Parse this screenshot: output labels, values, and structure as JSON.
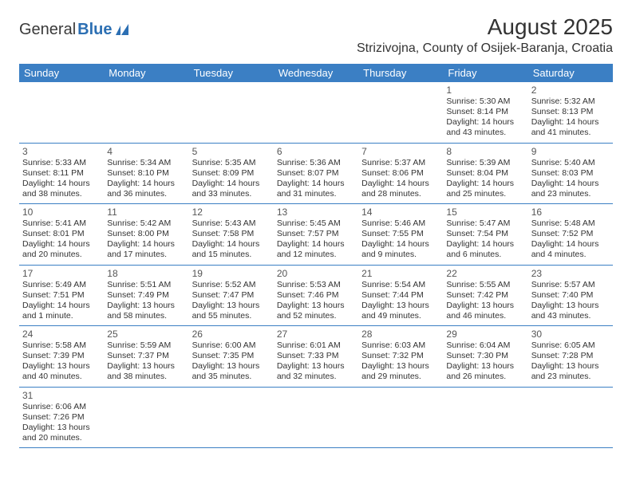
{
  "logo": {
    "general": "General",
    "blue": "Blue"
  },
  "header": {
    "month_title": "August 2025",
    "location": "Strizivojna, County of Osijek-Baranja, Croatia"
  },
  "calendar": {
    "colors": {
      "header_bg": "#3b7fc4",
      "header_fg": "#ffffff",
      "border": "#3b7fc4",
      "text": "#333333",
      "daynum": "#555555",
      "page_bg": "#ffffff"
    },
    "day_headers": [
      "Sunday",
      "Monday",
      "Tuesday",
      "Wednesday",
      "Thursday",
      "Friday",
      "Saturday"
    ],
    "weeks": [
      [
        null,
        null,
        null,
        null,
        null,
        {
          "n": "1",
          "sr": "Sunrise: 5:30 AM",
          "ss": "Sunset: 8:14 PM",
          "dl": "Daylight: 14 hours and 43 minutes."
        },
        {
          "n": "2",
          "sr": "Sunrise: 5:32 AM",
          "ss": "Sunset: 8:13 PM",
          "dl": "Daylight: 14 hours and 41 minutes."
        }
      ],
      [
        {
          "n": "3",
          "sr": "Sunrise: 5:33 AM",
          "ss": "Sunset: 8:11 PM",
          "dl": "Daylight: 14 hours and 38 minutes."
        },
        {
          "n": "4",
          "sr": "Sunrise: 5:34 AM",
          "ss": "Sunset: 8:10 PM",
          "dl": "Daylight: 14 hours and 36 minutes."
        },
        {
          "n": "5",
          "sr": "Sunrise: 5:35 AM",
          "ss": "Sunset: 8:09 PM",
          "dl": "Daylight: 14 hours and 33 minutes."
        },
        {
          "n": "6",
          "sr": "Sunrise: 5:36 AM",
          "ss": "Sunset: 8:07 PM",
          "dl": "Daylight: 14 hours and 31 minutes."
        },
        {
          "n": "7",
          "sr": "Sunrise: 5:37 AM",
          "ss": "Sunset: 8:06 PM",
          "dl": "Daylight: 14 hours and 28 minutes."
        },
        {
          "n": "8",
          "sr": "Sunrise: 5:39 AM",
          "ss": "Sunset: 8:04 PM",
          "dl": "Daylight: 14 hours and 25 minutes."
        },
        {
          "n": "9",
          "sr": "Sunrise: 5:40 AM",
          "ss": "Sunset: 8:03 PM",
          "dl": "Daylight: 14 hours and 23 minutes."
        }
      ],
      [
        {
          "n": "10",
          "sr": "Sunrise: 5:41 AM",
          "ss": "Sunset: 8:01 PM",
          "dl": "Daylight: 14 hours and 20 minutes."
        },
        {
          "n": "11",
          "sr": "Sunrise: 5:42 AM",
          "ss": "Sunset: 8:00 PM",
          "dl": "Daylight: 14 hours and 17 minutes."
        },
        {
          "n": "12",
          "sr": "Sunrise: 5:43 AM",
          "ss": "Sunset: 7:58 PM",
          "dl": "Daylight: 14 hours and 15 minutes."
        },
        {
          "n": "13",
          "sr": "Sunrise: 5:45 AM",
          "ss": "Sunset: 7:57 PM",
          "dl": "Daylight: 14 hours and 12 minutes."
        },
        {
          "n": "14",
          "sr": "Sunrise: 5:46 AM",
          "ss": "Sunset: 7:55 PM",
          "dl": "Daylight: 14 hours and 9 minutes."
        },
        {
          "n": "15",
          "sr": "Sunrise: 5:47 AM",
          "ss": "Sunset: 7:54 PM",
          "dl": "Daylight: 14 hours and 6 minutes."
        },
        {
          "n": "16",
          "sr": "Sunrise: 5:48 AM",
          "ss": "Sunset: 7:52 PM",
          "dl": "Daylight: 14 hours and 4 minutes."
        }
      ],
      [
        {
          "n": "17",
          "sr": "Sunrise: 5:49 AM",
          "ss": "Sunset: 7:51 PM",
          "dl": "Daylight: 14 hours and 1 minute."
        },
        {
          "n": "18",
          "sr": "Sunrise: 5:51 AM",
          "ss": "Sunset: 7:49 PM",
          "dl": "Daylight: 13 hours and 58 minutes."
        },
        {
          "n": "19",
          "sr": "Sunrise: 5:52 AM",
          "ss": "Sunset: 7:47 PM",
          "dl": "Daylight: 13 hours and 55 minutes."
        },
        {
          "n": "20",
          "sr": "Sunrise: 5:53 AM",
          "ss": "Sunset: 7:46 PM",
          "dl": "Daylight: 13 hours and 52 minutes."
        },
        {
          "n": "21",
          "sr": "Sunrise: 5:54 AM",
          "ss": "Sunset: 7:44 PM",
          "dl": "Daylight: 13 hours and 49 minutes."
        },
        {
          "n": "22",
          "sr": "Sunrise: 5:55 AM",
          "ss": "Sunset: 7:42 PM",
          "dl": "Daylight: 13 hours and 46 minutes."
        },
        {
          "n": "23",
          "sr": "Sunrise: 5:57 AM",
          "ss": "Sunset: 7:40 PM",
          "dl": "Daylight: 13 hours and 43 minutes."
        }
      ],
      [
        {
          "n": "24",
          "sr": "Sunrise: 5:58 AM",
          "ss": "Sunset: 7:39 PM",
          "dl": "Daylight: 13 hours and 40 minutes."
        },
        {
          "n": "25",
          "sr": "Sunrise: 5:59 AM",
          "ss": "Sunset: 7:37 PM",
          "dl": "Daylight: 13 hours and 38 minutes."
        },
        {
          "n": "26",
          "sr": "Sunrise: 6:00 AM",
          "ss": "Sunset: 7:35 PM",
          "dl": "Daylight: 13 hours and 35 minutes."
        },
        {
          "n": "27",
          "sr": "Sunrise: 6:01 AM",
          "ss": "Sunset: 7:33 PM",
          "dl": "Daylight: 13 hours and 32 minutes."
        },
        {
          "n": "28",
          "sr": "Sunrise: 6:03 AM",
          "ss": "Sunset: 7:32 PM",
          "dl": "Daylight: 13 hours and 29 minutes."
        },
        {
          "n": "29",
          "sr": "Sunrise: 6:04 AM",
          "ss": "Sunset: 7:30 PM",
          "dl": "Daylight: 13 hours and 26 minutes."
        },
        {
          "n": "30",
          "sr": "Sunrise: 6:05 AM",
          "ss": "Sunset: 7:28 PM",
          "dl": "Daylight: 13 hours and 23 minutes."
        }
      ],
      [
        {
          "n": "31",
          "sr": "Sunrise: 6:06 AM",
          "ss": "Sunset: 7:26 PM",
          "dl": "Daylight: 13 hours and 20 minutes."
        },
        null,
        null,
        null,
        null,
        null,
        null
      ]
    ]
  }
}
